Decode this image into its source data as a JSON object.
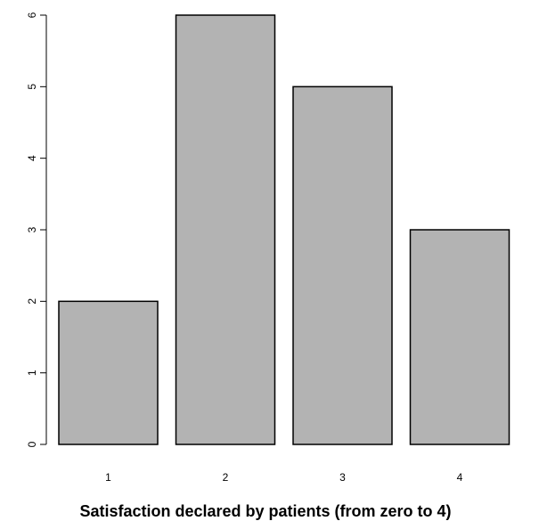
{
  "chart_data": {
    "type": "bar",
    "title": "",
    "xlabel": "Satisfaction declared by patients (from zero to 4)",
    "ylabel": "",
    "categories": [
      "1",
      "2",
      "3",
      "4"
    ],
    "values": [
      2,
      6,
      5,
      3
    ],
    "ylim": [
      0,
      6
    ],
    "yticks": [
      "0",
      "1",
      "2",
      "3",
      "4",
      "5",
      "6"
    ],
    "grid": false,
    "bar_color": "#b3b3b3",
    "edge_color": "#000000"
  }
}
